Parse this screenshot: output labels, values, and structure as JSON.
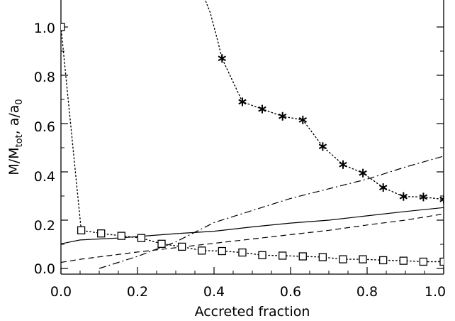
{
  "chart_data": {
    "type": "line",
    "xlabel": "Accreted fraction",
    "ylabel_parts": {
      "m": "M/M",
      "m_sub": "tot",
      "sep": ", a/a",
      "a_sub": "0"
    },
    "xlim": [
      0.0,
      1.0
    ],
    "ylim": [
      0.0,
      1.1
    ],
    "xticks": [
      "0.0",
      "0.2",
      "0.4",
      "0.6",
      "0.8",
      "1.0"
    ],
    "yticks": [
      "0.0",
      "0.2",
      "0.4",
      "0.6",
      "0.8",
      "1.0"
    ],
    "legend": "none",
    "grid": false,
    "series": [
      {
        "style": "solid",
        "x": [
          0.0,
          0.05,
          0.1,
          0.15,
          0.2,
          0.3,
          0.4,
          0.5,
          0.6,
          0.7,
          0.8,
          0.9,
          1.0
        ],
        "y": [
          0.102,
          0.118,
          0.122,
          0.126,
          0.132,
          0.144,
          0.154,
          0.172,
          0.188,
          0.2,
          0.218,
          0.236,
          0.252
        ]
      },
      {
        "style": "dashed",
        "x": [
          0.0,
          0.05,
          0.1,
          0.2,
          0.3,
          0.4,
          0.5,
          0.6,
          0.7,
          0.8,
          0.9,
          1.0
        ],
        "y": [
          0.025,
          0.038,
          0.048,
          0.068,
          0.086,
          0.104,
          0.122,
          0.14,
          0.158,
          0.18,
          0.2,
          0.226
        ]
      },
      {
        "style": "dash-dot",
        "x": [
          0.1,
          0.2,
          0.3,
          0.4,
          0.5,
          0.6,
          0.7,
          0.8,
          0.9,
          1.0
        ],
        "y": [
          0.0,
          0.05,
          0.11,
          0.19,
          0.24,
          0.29,
          0.33,
          0.37,
          0.42,
          0.465
        ]
      },
      {
        "style": "dotted",
        "marker": "square",
        "x": [
          0.0,
          0.053,
          0.105,
          0.158,
          0.21,
          0.263,
          0.316,
          0.368,
          0.421,
          0.474,
          0.526,
          0.579,
          0.632,
          0.684,
          0.737,
          0.789,
          0.842,
          0.895,
          0.947,
          1.0
        ],
        "y": [
          1.0,
          0.158,
          0.145,
          0.135,
          0.126,
          0.102,
          0.09,
          0.074,
          0.072,
          0.066,
          0.055,
          0.053,
          0.05,
          0.047,
          0.038,
          0.038,
          0.034,
          0.032,
          0.028,
          0.028
        ]
      },
      {
        "style": "dotted",
        "marker": "asterisk",
        "x": [
          0.421,
          0.474,
          0.526,
          0.579,
          0.632,
          0.684,
          0.737,
          0.789,
          0.842,
          0.895,
          0.947,
          1.0
        ],
        "y": [
          0.87,
          0.69,
          0.66,
          0.63,
          0.615,
          0.505,
          0.43,
          0.395,
          0.335,
          0.298,
          0.296,
          0.286
        ],
        "lead_in": {
          "x": [
            0.375,
            0.39,
            0.4,
            0.41,
            0.421
          ],
          "y": [
            1.12,
            1.06,
            1.0,
            0.94,
            0.87
          ]
        }
      }
    ]
  }
}
